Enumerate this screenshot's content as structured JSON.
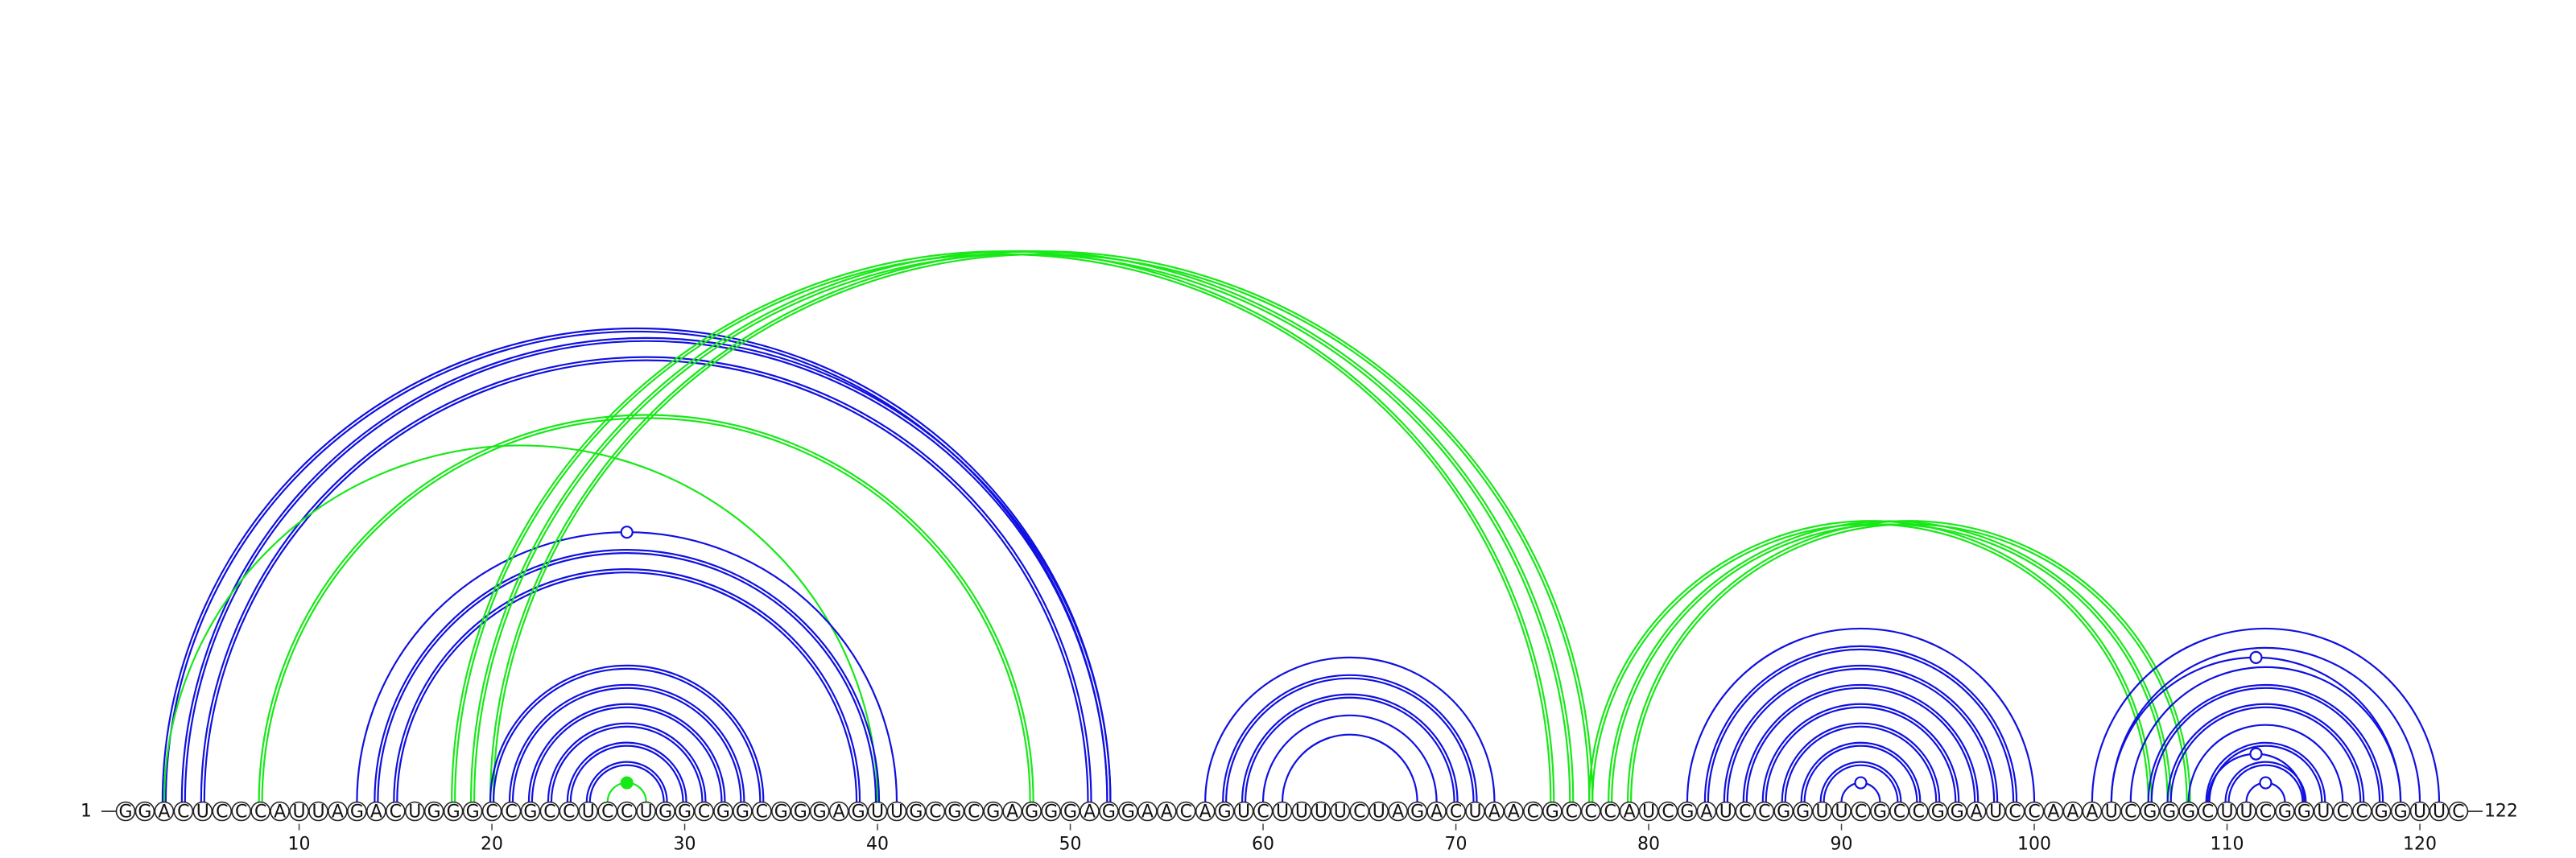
{
  "chart_data": {
    "type": "arc-diagram",
    "sequence": "GGACUCCCAUUAGACUGGGCCGCCUCCUGGCGGCGGGAGUUGCGCGAGGGAGGAACAGUCUUUUCUAGACUAACGCCCAUCGAUCCGGUUCGCCGGAUCCAAAUCGGGCUUCGGUCCGGUUC",
    "length": 122,
    "start_label": "1",
    "end_label": "122",
    "tick_labels": [
      "10",
      "20",
      "30",
      "40",
      "50",
      "60",
      "70",
      "80",
      "90",
      "100",
      "110",
      "120"
    ],
    "colors": {
      "blue": "#1010e0",
      "green": "#18e818",
      "backbone": "#444444"
    },
    "arcs": [
      {
        "i": 3,
        "j": 52,
        "color": "blue",
        "lines": 2
      },
      {
        "i": 4,
        "j": 52,
        "color": "blue",
        "lines": 2
      },
      {
        "i": 5,
        "j": 51,
        "color": "blue",
        "lines": 2
      },
      {
        "i": 3,
        "j": 40,
        "color": "green",
        "lines": 1
      },
      {
        "i": 8,
        "j": 48,
        "color": "green",
        "lines": 2
      },
      {
        "i": 13,
        "j": 41,
        "color": "blue",
        "lines": 1,
        "marker": "open"
      },
      {
        "i": 14,
        "j": 40,
        "color": "blue",
        "lines": 2
      },
      {
        "i": 15,
        "j": 39,
        "color": "blue",
        "lines": 2
      },
      {
        "i": 18,
        "j": 75,
        "color": "green",
        "lines": 2
      },
      {
        "i": 19,
        "j": 76,
        "color": "green",
        "lines": 2
      },
      {
        "i": 20,
        "j": 77,
        "color": "green",
        "lines": 2
      },
      {
        "i": 20,
        "j": 34,
        "color": "blue",
        "lines": 2
      },
      {
        "i": 21,
        "j": 33,
        "color": "blue",
        "lines": 2
      },
      {
        "i": 22,
        "j": 32,
        "color": "blue",
        "lines": 2
      },
      {
        "i": 23,
        "j": 31,
        "color": "blue",
        "lines": 2
      },
      {
        "i": 24,
        "j": 30,
        "color": "blue",
        "lines": 2
      },
      {
        "i": 25,
        "j": 29,
        "color": "blue",
        "lines": 2
      },
      {
        "i": 26,
        "j": 28,
        "color": "green",
        "lines": 1,
        "marker": "filled"
      },
      {
        "i": 57,
        "j": 72,
        "color": "blue",
        "lines": 1
      },
      {
        "i": 58,
        "j": 71,
        "color": "blue",
        "lines": 2
      },
      {
        "i": 59,
        "j": 70,
        "color": "blue",
        "lines": 2
      },
      {
        "i": 60,
        "j": 69,
        "color": "blue",
        "lines": 1
      },
      {
        "i": 61,
        "j": 68,
        "color": "blue",
        "lines": 1
      },
      {
        "i": 77,
        "j": 106,
        "color": "green",
        "lines": 2
      },
      {
        "i": 78,
        "j": 107,
        "color": "green",
        "lines": 2
      },
      {
        "i": 79,
        "j": 108,
        "color": "green",
        "lines": 2
      },
      {
        "i": 82,
        "j": 100,
        "color": "blue",
        "lines": 1
      },
      {
        "i": 83,
        "j": 99,
        "color": "blue",
        "lines": 2
      },
      {
        "i": 84,
        "j": 98,
        "color": "blue",
        "lines": 2
      },
      {
        "i": 85,
        "j": 97,
        "color": "blue",
        "lines": 2
      },
      {
        "i": 86,
        "j": 96,
        "color": "blue",
        "lines": 2
      },
      {
        "i": 87,
        "j": 95,
        "color": "blue",
        "lines": 2
      },
      {
        "i": 88,
        "j": 94,
        "color": "blue",
        "lines": 2
      },
      {
        "i": 89,
        "j": 93,
        "color": "blue",
        "lines": 2
      },
      {
        "i": 90,
        "j": 92,
        "color": "blue",
        "lines": 1,
        "marker": "open"
      },
      {
        "i": 103,
        "j": 121,
        "color": "blue",
        "lines": 1
      },
      {
        "i": 104,
        "j": 120,
        "color": "blue",
        "lines": 1
      },
      {
        "i": 105,
        "j": 119,
        "color": "blue",
        "lines": 1
      },
      {
        "i": 106,
        "j": 118,
        "color": "blue",
        "lines": 2
      },
      {
        "i": 107,
        "j": 117,
        "color": "blue",
        "lines": 2
      },
      {
        "i": 108,
        "j": 116,
        "color": "blue",
        "lines": 1
      },
      {
        "i": 109,
        "j": 115,
        "color": "blue",
        "lines": 2
      },
      {
        "i": 110,
        "j": 114,
        "color": "blue",
        "lines": 2
      },
      {
        "i": 111,
        "j": 113,
        "color": "blue",
        "lines": 1,
        "marker": "open"
      },
      {
        "i": 104,
        "j": 119,
        "color": "blue",
        "lines": 1,
        "marker": "open"
      },
      {
        "i": 109,
        "j": 114,
        "color": "blue",
        "lines": 1,
        "marker": "open"
      }
    ]
  }
}
